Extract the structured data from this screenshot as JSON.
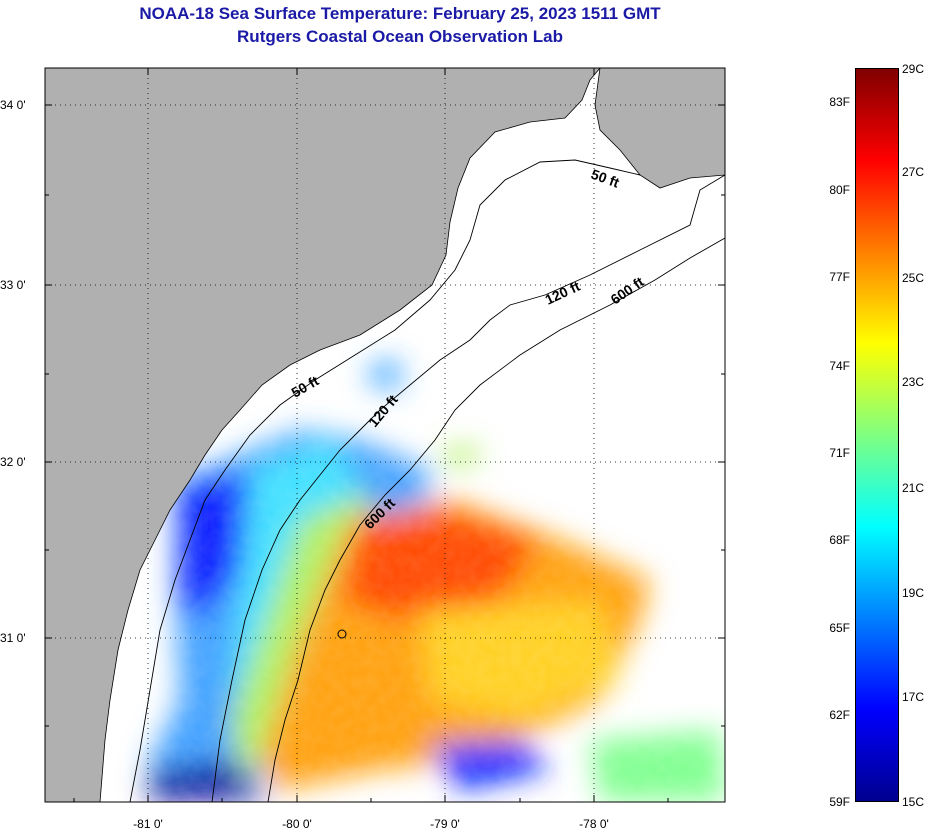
{
  "title": {
    "line1": "NOAA-18 Sea Surface Temperature:  February 25, 2023 1511 GMT",
    "line2": "Rutgers Coastal Ocean Observation Lab"
  },
  "map": {
    "lat_labels": [
      "34 0'",
      "33 0'",
      "32 0'",
      "31 0'"
    ],
    "lon_labels": [
      "-81 0'",
      "-80 0'",
      "-79 0'",
      "-78 0'"
    ],
    "isobath_labels": [
      "50 ft",
      "120 ft",
      "600 ft",
      "50 ft",
      "120 ft",
      "600 ft"
    ],
    "colors": {
      "land": "#b0b0b0",
      "ocean_nodata": "#ffffff",
      "title": "#1a1aa6"
    }
  },
  "colorbar": {
    "fahrenheit_labels": [
      "83F",
      "80F",
      "77F",
      "74F",
      "71F",
      "68F",
      "65F",
      "62F",
      "59F"
    ],
    "celsius_labels": [
      "29C",
      "27C",
      "25C",
      "23C",
      "21C",
      "19C",
      "17C",
      "15C"
    ],
    "range_c": [
      15,
      29
    ],
    "colors_low_to_high": [
      "#00008f",
      "#0000ff",
      "#0080ff",
      "#00ffff",
      "#80ff80",
      "#ffff00",
      "#ff8000",
      "#ff0000",
      "#800000"
    ]
  }
}
